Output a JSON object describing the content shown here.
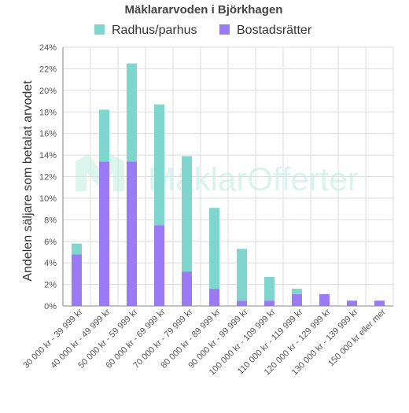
{
  "chart_data": {
    "type": "bar",
    "stacked": true,
    "title": "Mäklararvoden i Björkhagen",
    "xlabel": "",
    "ylabel": "Andelen säljare som betalat arvodet",
    "ylim": [
      0,
      24
    ],
    "y_ticks": [
      "0%",
      "2%",
      "4%",
      "6%",
      "8%",
      "10%",
      "12%",
      "14%",
      "16%",
      "18%",
      "20%",
      "22%",
      "24%"
    ],
    "grid": true,
    "legend_position": "top",
    "watermark": "MäklarOfferter",
    "categories": [
      "30 000 kr - 39 999 kr",
      "40 000 kr - 49 999 kr",
      "50 000 kr - 59 999 kr",
      "60 000 kr - 69 999 kr",
      "70 000 kr - 79 999 kr",
      "80 000 kr - 89 999 kr",
      "90 000 kr - 99 999 kr",
      "100 000 kr - 109 999 kr",
      "110 000 kr - 119 999 kr",
      "120 000 kr - 129 999 kr",
      "130 000 kr - 139 999 kr",
      "150 000 kr eller mer"
    ],
    "series": [
      {
        "name": "Bostadsrätter",
        "color": "#9b7af5",
        "values": [
          4.8,
          13.4,
          13.4,
          7.5,
          3.2,
          1.6,
          0.5,
          0.5,
          1.1,
          1.1,
          0.5,
          0.5
        ]
      },
      {
        "name": "Radhus/parhus",
        "color": "#7ed6cf",
        "values": [
          1.0,
          4.8,
          9.1,
          11.2,
          10.7,
          7.5,
          4.8,
          2.2,
          0.5,
          0,
          0,
          0
        ]
      }
    ],
    "legend_order": [
      "Radhus/parhus",
      "Bostadsrätter"
    ]
  }
}
